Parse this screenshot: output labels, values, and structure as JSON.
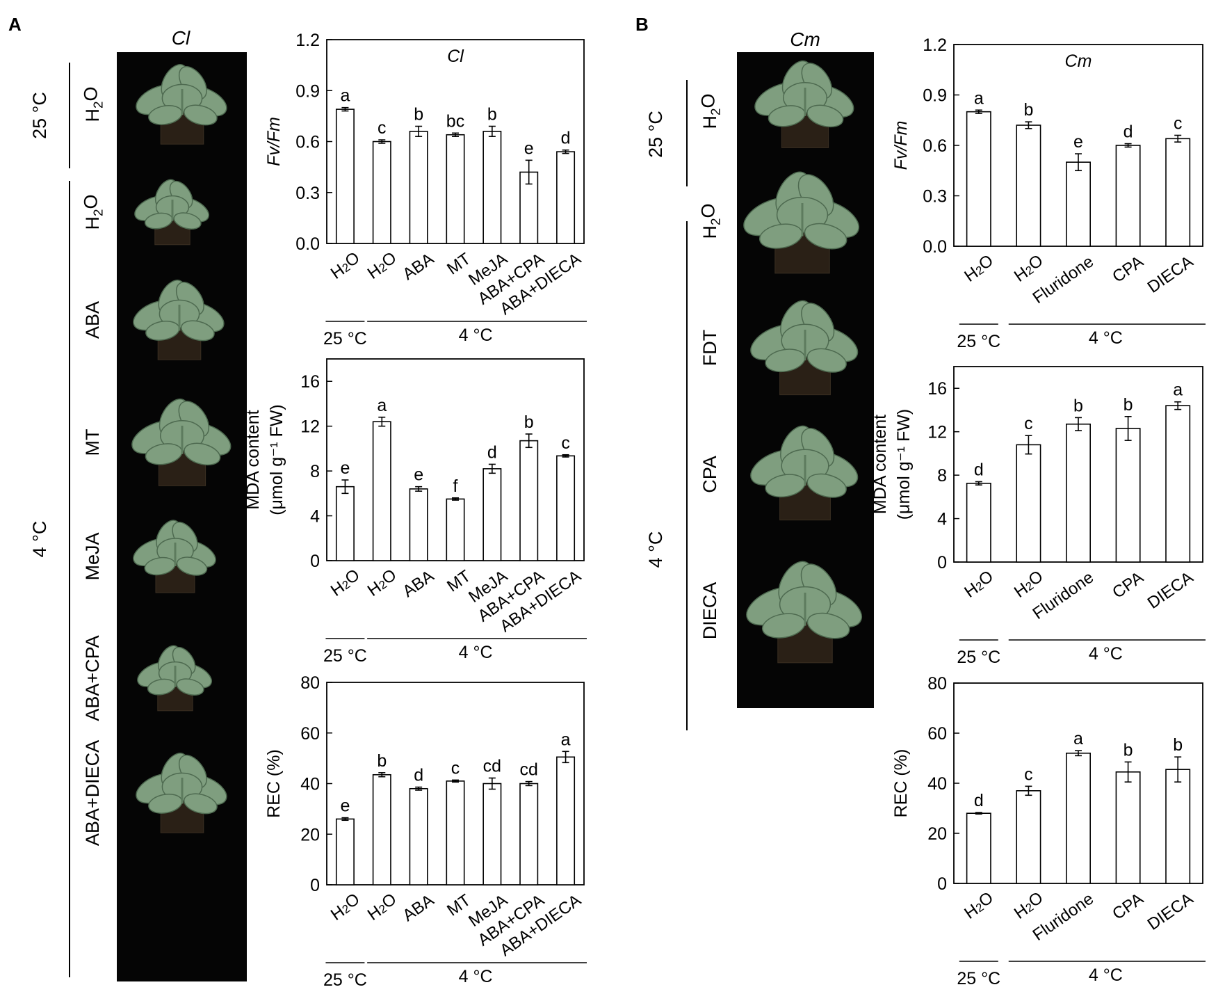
{
  "panels": [
    {
      "letter": "A",
      "species": "Cl",
      "photo_labels": [
        "H₂O",
        "H₂O",
        "ABA",
        "MT",
        "MeJA",
        "ABA+CPA",
        "ABA+DIECA"
      ],
      "temp_groups": [
        {
          "label": "25 °C",
          "rows": [
            0,
            0
          ]
        },
        {
          "label": "4 °C",
          "rows": [
            1,
            6
          ]
        }
      ]
    },
    {
      "letter": "B",
      "species": "Cm",
      "photo_labels": [
        "H₂O",
        "H₂O",
        "FDT",
        "CPA",
        "DIECA"
      ],
      "temp_groups": [
        {
          "label": "25 °C",
          "rows": [
            0,
            0
          ]
        },
        {
          "label": "4 °C",
          "rows": [
            1,
            4
          ]
        }
      ]
    }
  ],
  "temp_labels": {
    "warm": "25 °C",
    "cold": "4 °C"
  },
  "chart_data": [
    {
      "id": "A1",
      "type": "bar",
      "panel": "A",
      "title": "Cl",
      "ylabel": "Fv/Fm",
      "ylim": [
        0,
        1.2
      ],
      "yticks": [
        "0.0",
        "0.3",
        "0.6",
        "0.9",
        "1.2"
      ],
      "categories": [
        "H₂O",
        "H₂O",
        "ABA",
        "MT",
        "MeJA",
        "ABA+CPA",
        "ABA+DIECA"
      ],
      "values": [
        0.79,
        0.6,
        0.66,
        0.64,
        0.66,
        0.42,
        0.54
      ],
      "errors": [
        0.01,
        0.01,
        0.03,
        0.01,
        0.03,
        0.07,
        0.01
      ],
      "letters": [
        "a",
        "c",
        "b",
        "bc",
        "b",
        "e",
        "d"
      ],
      "groups": [
        "25 °C",
        "4 °C"
      ]
    },
    {
      "id": "A2",
      "type": "bar",
      "panel": "A",
      "title": "",
      "ylabel_lines": [
        "MDA content",
        "(μmol g⁻¹ FW)"
      ],
      "ylim": [
        0,
        18
      ],
      "yticks": [
        "0",
        "4",
        "8",
        "12",
        "16"
      ],
      "categories": [
        "H₂O",
        "H₂O",
        "ABA",
        "MT",
        "MeJA",
        "ABA+CPA",
        "ABA+DIECA"
      ],
      "values": [
        6.6,
        12.4,
        6.4,
        5.5,
        8.2,
        10.7,
        9.35
      ],
      "errors": [
        0.6,
        0.4,
        0.2,
        0.1,
        0.4,
        0.6,
        0.1
      ],
      "letters": [
        "e",
        "a",
        "e",
        "f",
        "d",
        "b",
        "c"
      ],
      "groups": [
        "25 °C",
        "4 °C"
      ]
    },
    {
      "id": "A3",
      "type": "bar",
      "panel": "A",
      "title": "",
      "ylabel": "REC (%)",
      "ylim": [
        0,
        80
      ],
      "yticks": [
        "0",
        "20",
        "40",
        "60",
        "80"
      ],
      "categories": [
        "H₂O",
        "H₂O",
        "ABA",
        "MT",
        "MeJA",
        "ABA+CPA",
        "ABA+DIECA"
      ],
      "values": [
        26,
        43.5,
        38,
        41,
        40,
        40,
        50.5
      ],
      "errors": [
        0.5,
        0.8,
        0.6,
        0.4,
        2.2,
        0.8,
        2.2
      ],
      "letters": [
        "e",
        "b",
        "d",
        "c",
        "cd",
        "cd",
        "a"
      ],
      "groups": [
        "25 °C",
        "4 °C"
      ]
    },
    {
      "id": "B1",
      "type": "bar",
      "panel": "B",
      "title": "Cm",
      "ylabel": "Fv/Fm",
      "ylim": [
        0,
        1.2
      ],
      "yticks": [
        "0.0",
        "0.3",
        "0.6",
        "0.9",
        "1.2"
      ],
      "categories": [
        "H₂O",
        "H₂O",
        "Fluridone",
        "CPA",
        "DIECA"
      ],
      "values": [
        0.8,
        0.72,
        0.5,
        0.6,
        0.64
      ],
      "errors": [
        0.01,
        0.02,
        0.05,
        0.01,
        0.02
      ],
      "letters": [
        "a",
        "b",
        "e",
        "d",
        "c"
      ],
      "groups": [
        "25 °C",
        "4 °C"
      ]
    },
    {
      "id": "B2",
      "type": "bar",
      "panel": "B",
      "title": "",
      "ylabel_lines": [
        "MDA content",
        "(μmol g⁻¹ FW)"
      ],
      "ylim": [
        0,
        18
      ],
      "yticks": [
        "0",
        "4",
        "8",
        "12",
        "16"
      ],
      "categories": [
        "H₂O",
        "H₂O",
        "Fluridone",
        "CPA",
        "DIECA"
      ],
      "values": [
        7.25,
        10.8,
        12.7,
        12.3,
        14.4
      ],
      "errors": [
        0.15,
        0.85,
        0.6,
        1.1,
        0.35
      ],
      "letters": [
        "d",
        "c",
        "b",
        "b",
        "a"
      ],
      "groups": [
        "25 °C",
        "4 °C"
      ]
    },
    {
      "id": "B3",
      "type": "bar",
      "panel": "B",
      "title": "",
      "ylabel": "REC (%)",
      "ylim": [
        0,
        80
      ],
      "yticks": [
        "0",
        "20",
        "40",
        "60",
        "80"
      ],
      "categories": [
        "H₂O",
        "H₂O",
        "Fluridone",
        "CPA",
        "DIECA"
      ],
      "values": [
        28,
        37,
        52,
        44.5,
        45.5
      ],
      "errors": [
        0.3,
        1.8,
        1.0,
        4.0,
        5.0
      ],
      "letters": [
        "d",
        "c",
        "a",
        "b",
        "b"
      ],
      "groups": [
        "25 °C",
        "4 °C"
      ]
    }
  ]
}
